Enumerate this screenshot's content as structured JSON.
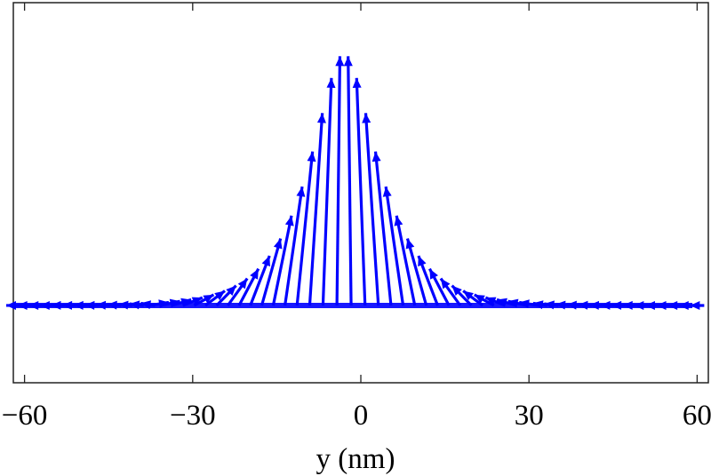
{
  "chart_data": {
    "type": "quiver",
    "title": "",
    "xlabel": "y (nm)",
    "ylabel": "",
    "xlim": [
      -62,
      62
    ],
    "x_ticks": [
      -60,
      -30,
      0,
      30,
      60
    ],
    "x_tick_labels": [
      "−60",
      "−30",
      "0",
      "30",
      "60"
    ],
    "y_ticks": [],
    "grid": false,
    "legend": "none",
    "arrow_color": "#0000ff",
    "peak_position": -3,
    "peak_angle_from_horizontal_deg": 90,
    "profile_width_nm": 6.5,
    "max_arrow_height_fraction": 1.0,
    "vector_positions": [
      -62,
      -60,
      -58,
      -56,
      -54,
      -52,
      -50,
      -48,
      -46,
      -44,
      -42,
      -40,
      -38,
      -36,
      -34,
      -32,
      -30,
      -28,
      -26,
      -24,
      -22,
      -20,
      -18,
      -16,
      -14,
      -12,
      -10,
      -8,
      -6,
      -4,
      -2,
      0,
      2,
      4,
      6,
      8,
      10,
      12,
      14,
      16,
      18,
      20,
      22,
      24,
      26,
      28,
      30,
      32,
      34,
      36,
      38,
      40,
      42,
      44,
      46,
      48,
      50,
      52,
      54,
      56,
      58,
      60
    ]
  }
}
